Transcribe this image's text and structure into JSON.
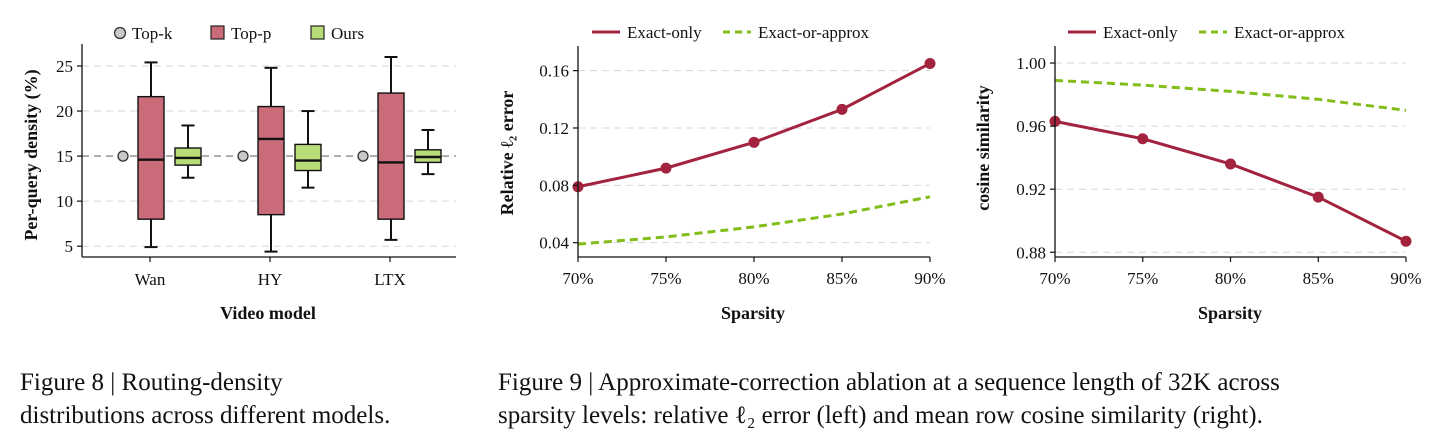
{
  "colors": {
    "top_k": "#c8c8c8",
    "top_p": "#c96b78",
    "ours": "#b8dc78",
    "exact": "#a3233f",
    "approx": "#82bd1a",
    "grid": "#d6d6d6"
  },
  "figure8": {
    "caption_line1": "Figure 8 | Routing-density",
    "caption_line2": "distributions across different models."
  },
  "figure9": {
    "caption_line1": "Figure 9 | Approximate-correction ablation at a sequence length of 32K across",
    "caption_line2": "sparsity levels: relative ℓ₂ error (left) and mean row cosine similarity (right)."
  },
  "chart_data": [
    {
      "type": "box",
      "xlabel": "Video model",
      "ylabel": "Per-query density (%)",
      "ylim": [
        3.8,
        27
      ],
      "yticks": [
        5,
        10,
        15,
        20,
        25
      ],
      "grid": "horizontal dashed",
      "legend_position": "top",
      "categories": [
        "Wan",
        "HY",
        "LTX"
      ],
      "series": [
        {
          "name": "Top-k",
          "icon": "circle-marker",
          "points": [
            15,
            15,
            15
          ]
        },
        {
          "name": "Top-p",
          "icon": "box",
          "boxes": [
            {
              "whisker_low": 4.9,
              "q1": 8.0,
              "median": 14.6,
              "q3": 21.6,
              "whisker_high": 25.4
            },
            {
              "whisker_low": 4.4,
              "q1": 8.5,
              "median": 16.9,
              "q3": 20.5,
              "whisker_high": 24.8
            },
            {
              "whisker_low": 5.7,
              "q1": 8.0,
              "median": 14.3,
              "q3": 22.0,
              "whisker_high": 26.0
            }
          ]
        },
        {
          "name": "Ours",
          "icon": "box",
          "boxes": [
            {
              "whisker_low": 12.6,
              "q1": 14.0,
              "median": 14.8,
              "q3": 15.9,
              "whisker_high": 18.4
            },
            {
              "whisker_low": 11.5,
              "q1": 13.4,
              "median": 14.5,
              "q3": 16.3,
              "whisker_high": 20.0
            },
            {
              "whisker_low": 13.0,
              "q1": 14.3,
              "median": 14.9,
              "q3": 15.7,
              "whisker_high": 17.9
            }
          ]
        }
      ]
    },
    {
      "type": "line",
      "xlabel": "Sparsity",
      "ylabel": "Relative ℓ₂ error",
      "x": [
        70,
        75,
        80,
        85,
        90
      ],
      "xticklabels": [
        "70%",
        "75%",
        "80%",
        "85%",
        "90%"
      ],
      "ylim": [
        0.03,
        0.173
      ],
      "yticks": [
        0.04,
        0.08,
        0.12,
        0.16
      ],
      "yticklabels": [
        "0.04",
        "0.08",
        "0.12",
        "0.16"
      ],
      "grid": "horizontal dashed",
      "legend_position": "top",
      "series": [
        {
          "name": "Exact-only",
          "style": "solid-markers",
          "values": [
            0.079,
            0.092,
            0.11,
            0.133,
            0.165
          ]
        },
        {
          "name": "Exact-or-approx",
          "style": "dashed",
          "values": [
            0.039,
            0.044,
            0.051,
            0.06,
            0.072
          ]
        }
      ]
    },
    {
      "type": "line",
      "xlabel": "Sparsity",
      "ylabel": "cosine similarity",
      "x": [
        70,
        75,
        80,
        85,
        90
      ],
      "xticklabels": [
        "70%",
        "75%",
        "80%",
        "85%",
        "90%"
      ],
      "ylim": [
        0.877,
        1.007
      ],
      "yticks": [
        0.88,
        0.92,
        0.96,
        1.0
      ],
      "yticklabels": [
        "0.88",
        "0.92",
        "0.96",
        "1.00"
      ],
      "grid": "horizontal dashed",
      "legend_position": "top",
      "series": [
        {
          "name": "Exact-only",
          "style": "solid-markers",
          "values": [
            0.963,
            0.952,
            0.936,
            0.915,
            0.887
          ]
        },
        {
          "name": "Exact-or-approx",
          "style": "dashed",
          "values": [
            0.989,
            0.986,
            0.982,
            0.977,
            0.97
          ]
        }
      ]
    }
  ]
}
